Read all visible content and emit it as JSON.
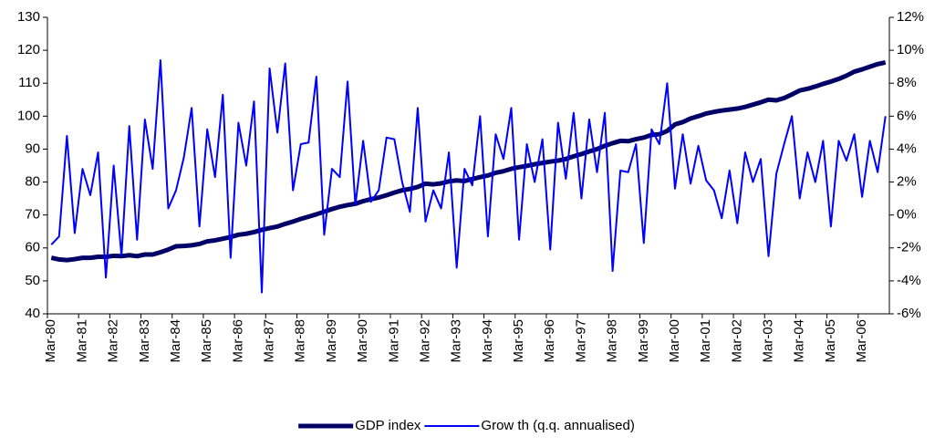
{
  "chart_data": {
    "type": "line",
    "categories": [
      "Mar-80",
      null,
      null,
      null,
      "Mar-81",
      null,
      null,
      null,
      "Mar-82",
      null,
      null,
      null,
      "Mar-83",
      null,
      null,
      null,
      "Mar-84",
      null,
      null,
      null,
      "Mar-85",
      null,
      null,
      null,
      "Mar-86",
      null,
      null,
      null,
      "Mar-87",
      null,
      null,
      null,
      "Mar-88",
      null,
      null,
      null,
      "Mar-89",
      null,
      null,
      null,
      "Mar-90",
      null,
      null,
      null,
      "Mar-91",
      null,
      null,
      null,
      "Mar-92",
      null,
      null,
      null,
      "Mar-93",
      null,
      null,
      null,
      "Mar-94",
      null,
      null,
      null,
      "Mar-95",
      null,
      null,
      null,
      "Mar-96",
      null,
      null,
      null,
      "Mar-97",
      null,
      null,
      null,
      "Mar-98",
      null,
      null,
      null,
      "Mar-99",
      null,
      null,
      null,
      "Mar-00",
      null,
      null,
      null,
      "Mar-01",
      null,
      null,
      null,
      "Mar-02",
      null,
      null,
      null,
      "Mar-03",
      null,
      null,
      null,
      "Mar-04",
      null,
      null,
      null,
      "Mar-05",
      null,
      null,
      null,
      "Mar-06",
      null,
      null,
      null
    ],
    "series": [
      {
        "name": "GDP index",
        "color": "#000066",
        "values": [
          57,
          56.5,
          56.3,
          56.6,
          57,
          57,
          57.3,
          57.3,
          57.6,
          57.5,
          57.8,
          57.5,
          58,
          58,
          58.7,
          59.5,
          60.5,
          60.6,
          60.8,
          61.2,
          62,
          62.3,
          62.8,
          63.3,
          64,
          64.3,
          64.8,
          65.5,
          66,
          66.5,
          67.3,
          68,
          68.8,
          69.5,
          70.2,
          71,
          71.8,
          72.5,
          73,
          73.4,
          74.2,
          74.8,
          75.3,
          76,
          76.8,
          77.5,
          77.9,
          78.5,
          79.5,
          79.3,
          79.6,
          80.2,
          80.5,
          80.3,
          80.9,
          81.5,
          82,
          82.8,
          83.3,
          84,
          84.5,
          84.9,
          85.4,
          85.8,
          86.2,
          86.5,
          87,
          87.8,
          88.5,
          89.3,
          90,
          91,
          91.8,
          92.5,
          92.4,
          93,
          93.5,
          94.3,
          94.5,
          95.5,
          97.5,
          98.2,
          99.3,
          100,
          100.8,
          101.3,
          101.7,
          102,
          102.3,
          102.8,
          103.5,
          104.2,
          105,
          104.8,
          105.5,
          106.6,
          107.8,
          108.3,
          109,
          109.8,
          110.5,
          111.3,
          112.3,
          113.5,
          114.2,
          115,
          115.8,
          116.3
        ]
      },
      {
        "name": "Grow th (q.q. annualised)",
        "color": "#0000ff",
        "axis": "y2",
        "values": [
          -1.8,
          -1.3,
          4.8,
          -1.1,
          2.8,
          1.2,
          3.8,
          -3.8,
          3.0,
          -2.5,
          5.4,
          -1.5,
          5.8,
          2.8,
          9.4,
          0.4,
          1.5,
          3.5,
          6.5,
          -0.7,
          5.2,
          2.3,
          7.3,
          -2.6,
          5.6,
          3.0,
          6.9,
          -4.7,
          8.9,
          5.0,
          9.2,
          1.5,
          4.3,
          4.4,
          8.4,
          -1.2,
          2.8,
          2.3,
          8.1,
          0.6,
          4.5,
          0.8,
          1.5,
          4.7,
          4.6,
          2.0,
          0.2,
          6.5,
          -0.4,
          1.5,
          0.4,
          3.8,
          -3.2,
          2.8,
          1.8,
          6.0,
          -1.3,
          4.9,
          3.4,
          6.5,
          -1.5,
          4.3,
          2.0,
          4.6,
          -2.1,
          5.6,
          2.2,
          6.2,
          1.0,
          5.8,
          2.6,
          6.2,
          -3.4,
          2.7,
          2.6,
          4.3,
          -1.7,
          5.2,
          4.3,
          8.0,
          1.6,
          4.9,
          1.9,
          4.2,
          2.1,
          1.5,
          -0.2,
          2.7,
          -0.5,
          3.8,
          2.0,
          3.4,
          -2.5,
          2.5,
          4.3,
          6.0,
          1.0,
          3.8,
          2.0,
          4.5,
          -0.7,
          4.5,
          3.3,
          4.9,
          1.1,
          4.5,
          2.6,
          6.0
        ]
      }
    ],
    "ylim": [
      40,
      130
    ],
    "yticks": [
      40,
      50,
      60,
      70,
      80,
      90,
      100,
      110,
      120,
      130
    ],
    "y2lim": [
      -6,
      12
    ],
    "y2ticks": [
      {
        "value": -6,
        "label": "-6%"
      },
      {
        "value": -4,
        "label": "-4%"
      },
      {
        "value": -2,
        "label": "-2%"
      },
      {
        "value": 0,
        "label": "0%"
      },
      {
        "value": 2,
        "label": "2%"
      },
      {
        "value": 4,
        "label": "4%"
      },
      {
        "value": 6,
        "label": "6%"
      },
      {
        "value": 8,
        "label": "8%"
      },
      {
        "value": 10,
        "label": "10%"
      },
      {
        "value": 12,
        "label": "12%"
      }
    ],
    "grid": false,
    "legend": "bottom"
  }
}
